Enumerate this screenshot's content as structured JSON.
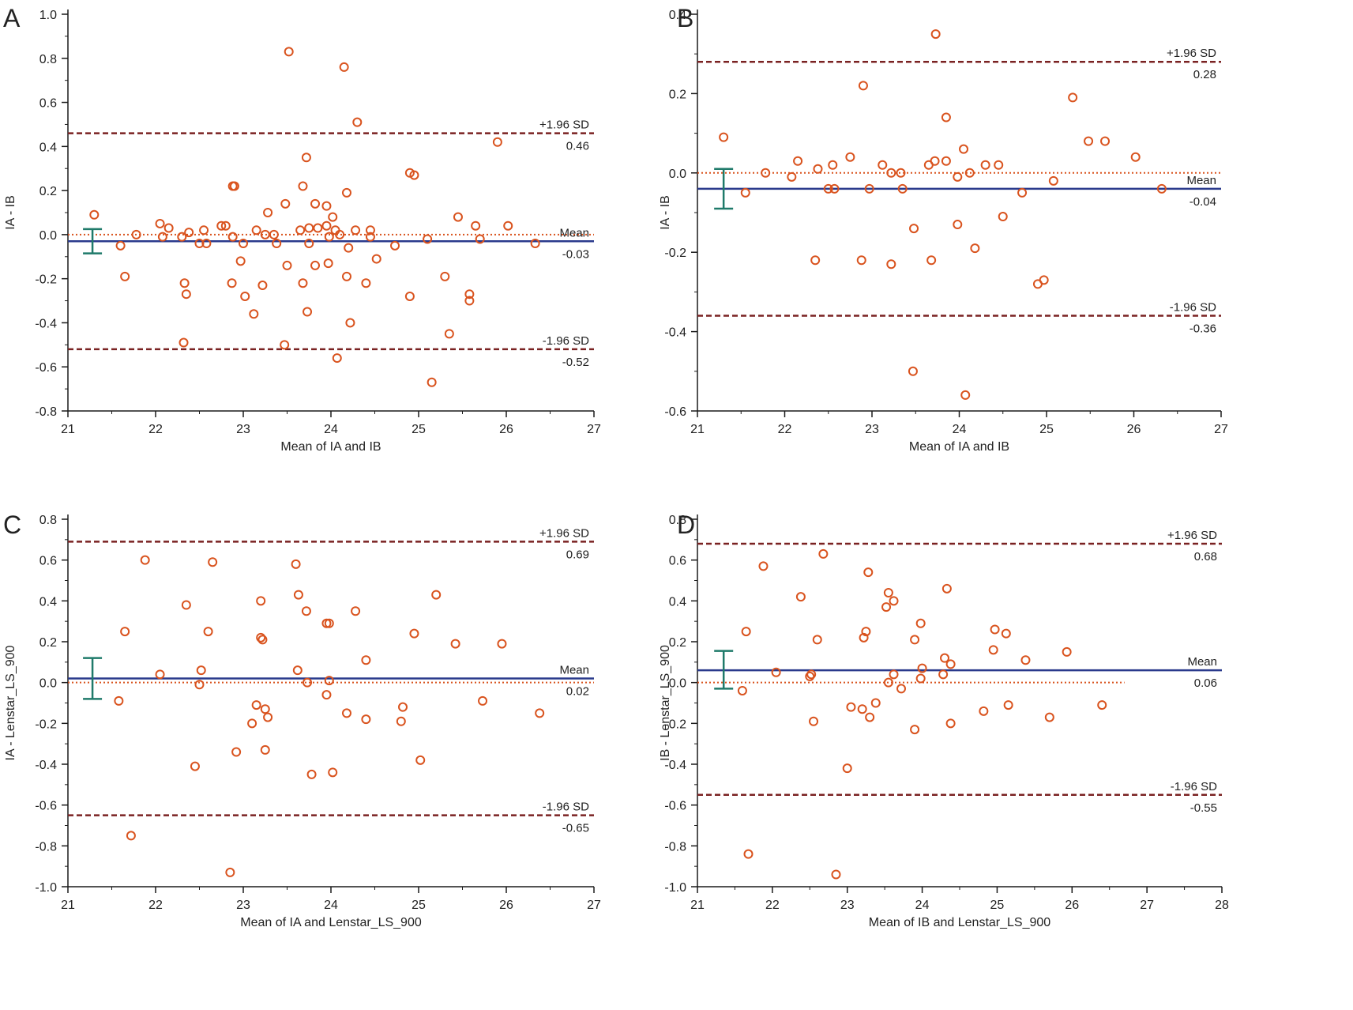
{
  "colors": {
    "axis": "#1a1a1a",
    "point": "#d9531e",
    "mean_line": "#2a3a8c",
    "sd_line": "#7a2222",
    "zero_line": "#d9531e",
    "ci_bar": "#1f7a6a"
  },
  "chart_data": [
    {
      "panel": "A",
      "type": "scatter",
      "xlabel": "Mean of IA and IB",
      "ylabel": "IA - IB",
      "xlim": [
        21,
        27
      ],
      "ylim": [
        -0.8,
        1.0
      ],
      "xticks": [
        "21",
        "22",
        "23",
        "24",
        "25",
        "26",
        "27"
      ],
      "yticks": [
        "-0.8",
        "-0.6",
        "-0.4",
        "-0.2",
        "0.0",
        "0.2",
        "0.4",
        "0.6",
        "0.8",
        "1.0"
      ],
      "lines": {
        "upper": {
          "value": 0.46,
          "label": "+1.96 SD",
          "value_label": "0.46"
        },
        "mean": {
          "value": -0.03,
          "label": "Mean",
          "value_label": "-0.03"
        },
        "lower": {
          "value": -0.52,
          "label": "-1.96 SD",
          "value_label": "-0.52"
        }
      },
      "mean_ci": {
        "x": 21.28,
        "low": -0.085,
        "high": 0.025
      },
      "points": [
        [
          21.3,
          0.09
        ],
        [
          21.6,
          -0.05
        ],
        [
          21.65,
          -0.19
        ],
        [
          21.78,
          0.0
        ],
        [
          22.05,
          0.05
        ],
        [
          22.08,
          -0.01
        ],
        [
          22.15,
          0.03
        ],
        [
          22.3,
          -0.01
        ],
        [
          22.33,
          -0.22
        ],
        [
          22.35,
          -0.27
        ],
        [
          22.32,
          -0.49
        ],
        [
          22.38,
          0.01
        ],
        [
          22.5,
          -0.04
        ],
        [
          22.55,
          0.02
        ],
        [
          22.58,
          -0.04
        ],
        [
          22.75,
          0.04
        ],
        [
          22.8,
          0.04
        ],
        [
          22.88,
          -0.01
        ],
        [
          22.88,
          0.22
        ],
        [
          22.9,
          0.22
        ],
        [
          22.87,
          -0.22
        ],
        [
          22.97,
          -0.12
        ],
        [
          23.0,
          -0.04
        ],
        [
          23.02,
          -0.28
        ],
        [
          23.15,
          0.02
        ],
        [
          23.12,
          -0.36
        ],
        [
          23.25,
          0.0
        ],
        [
          23.22,
          -0.23
        ],
        [
          23.28,
          0.1
        ],
        [
          23.38,
          -0.04
        ],
        [
          23.35,
          0.0
        ],
        [
          23.48,
          0.14
        ],
        [
          23.47,
          -0.5
        ],
        [
          23.5,
          -0.14
        ],
        [
          23.52,
          0.83
        ],
        [
          23.65,
          0.02
        ],
        [
          23.68,
          0.22
        ],
        [
          23.68,
          -0.22
        ],
        [
          23.72,
          0.35
        ],
        [
          23.75,
          0.03
        ],
        [
          23.75,
          -0.04
        ],
        [
          23.73,
          -0.35
        ],
        [
          23.82,
          0.14
        ],
        [
          23.85,
          0.03
        ],
        [
          23.82,
          -0.14
        ],
        [
          23.95,
          0.13
        ],
        [
          23.95,
          0.04
        ],
        [
          23.98,
          -0.01
        ],
        [
          23.97,
          -0.13
        ],
        [
          24.02,
          0.08
        ],
        [
          24.05,
          0.02
        ],
        [
          24.07,
          -0.56
        ],
        [
          24.1,
          0.0
        ],
        [
          24.15,
          0.76
        ],
        [
          24.18,
          0.19
        ],
        [
          24.2,
          -0.06
        ],
        [
          24.18,
          -0.19
        ],
        [
          24.22,
          -0.4
        ],
        [
          24.28,
          0.02
        ],
        [
          24.3,
          0.51
        ],
        [
          24.4,
          -0.22
        ],
        [
          24.45,
          0.02
        ],
        [
          24.45,
          -0.01
        ],
        [
          24.52,
          -0.11
        ],
        [
          24.73,
          -0.05
        ],
        [
          24.9,
          0.28
        ],
        [
          24.95,
          0.27
        ],
        [
          24.9,
          -0.28
        ],
        [
          25.1,
          -0.02
        ],
        [
          25.15,
          -0.67
        ],
        [
          25.3,
          -0.19
        ],
        [
          25.35,
          -0.45
        ],
        [
          25.45,
          0.08
        ],
        [
          25.58,
          -0.27
        ],
        [
          25.58,
          -0.3
        ],
        [
          25.65,
          0.04
        ],
        [
          25.7,
          -0.02
        ],
        [
          25.9,
          0.42
        ],
        [
          26.02,
          0.04
        ],
        [
          26.33,
          -0.04
        ]
      ]
    },
    {
      "panel": "B",
      "type": "scatter",
      "xlabel": "Mean of IA and IB",
      "ylabel": "IA - IB",
      "xlim": [
        21,
        27
      ],
      "ylim": [
        -0.6,
        0.4
      ],
      "xticks": [
        "21",
        "22",
        "23",
        "24",
        "25",
        "26",
        "27"
      ],
      "yticks": [
        "-0.6",
        "-0.4",
        "-0.2",
        "0.0",
        "0.2",
        "0.4"
      ],
      "lines": {
        "upper": {
          "value": 0.28,
          "label": "+1.96 SD",
          "value_label": "0.28"
        },
        "mean": {
          "value": -0.04,
          "label": "Mean",
          "value_label": "-0.04"
        },
        "lower": {
          "value": -0.36,
          "label": "-1.96 SD",
          "value_label": "-0.36"
        }
      },
      "mean_ci": {
        "x": 21.3,
        "low": -0.09,
        "high": 0.01
      },
      "points": [
        [
          21.3,
          0.09
        ],
        [
          21.55,
          -0.05
        ],
        [
          21.78,
          0.0
        ],
        [
          22.08,
          -0.01
        ],
        [
          22.15,
          0.03
        ],
        [
          22.35,
          -0.22
        ],
        [
          22.38,
          0.01
        ],
        [
          22.5,
          -0.04
        ],
        [
          22.55,
          0.02
        ],
        [
          22.57,
          -0.04
        ],
        [
          22.75,
          0.04
        ],
        [
          22.88,
          -0.22
        ],
        [
          22.9,
          0.22
        ],
        [
          22.97,
          -0.04
        ],
        [
          23.12,
          0.02
        ],
        [
          23.22,
          0.0
        ],
        [
          23.22,
          -0.23
        ],
        [
          23.33,
          0.0
        ],
        [
          23.35,
          -0.04
        ],
        [
          23.48,
          -0.14
        ],
        [
          23.47,
          -0.5
        ],
        [
          23.65,
          0.02
        ],
        [
          23.68,
          -0.22
        ],
        [
          23.72,
          0.03
        ],
        [
          23.73,
          0.35
        ],
        [
          23.85,
          0.03
        ],
        [
          23.85,
          0.14
        ],
        [
          23.98,
          -0.01
        ],
        [
          23.98,
          -0.13
        ],
        [
          24.05,
          0.06
        ],
        [
          24.07,
          -0.56
        ],
        [
          24.12,
          0.0
        ],
        [
          24.18,
          -0.19
        ],
        [
          24.3,
          0.02
        ],
        [
          24.45,
          0.02
        ],
        [
          24.5,
          -0.11
        ],
        [
          24.72,
          -0.05
        ],
        [
          24.9,
          -0.28
        ],
        [
          24.97,
          -0.27
        ],
        [
          25.08,
          -0.02
        ],
        [
          25.3,
          0.19
        ],
        [
          25.48,
          0.08
        ],
        [
          25.67,
          0.08
        ],
        [
          26.02,
          0.04
        ],
        [
          26.32,
          -0.04
        ]
      ]
    },
    {
      "panel": "C",
      "type": "scatter",
      "xlabel": "Mean of IA and Lenstar_LS_900",
      "ylabel": "IA - Lenstar_LS_900",
      "xlim": [
        21,
        27
      ],
      "ylim": [
        -1.0,
        0.8
      ],
      "xticks": [
        "21",
        "22",
        "23",
        "24",
        "25",
        "26",
        "27"
      ],
      "yticks": [
        "-1.0",
        "-0.8",
        "-0.6",
        "-0.4",
        "-0.2",
        "0.0",
        "0.2",
        "0.4",
        "0.6",
        "0.8"
      ],
      "lines": {
        "upper": {
          "value": 0.69,
          "label": "+1.96 SD",
          "value_label": "0.69"
        },
        "mean": {
          "value": 0.02,
          "label": "Mean",
          "value_label": "0.02"
        },
        "lower": {
          "value": -0.65,
          "label": "-1.96 SD",
          "value_label": "-0.65"
        }
      },
      "mean_ci": {
        "x": 21.28,
        "low": -0.08,
        "high": 0.12
      },
      "points": [
        [
          21.58,
          -0.09
        ],
        [
          21.65,
          0.25
        ],
        [
          21.72,
          -0.75
        ],
        [
          21.88,
          0.6
        ],
        [
          22.05,
          0.04
        ],
        [
          22.35,
          0.38
        ],
        [
          22.45,
          -0.41
        ],
        [
          22.5,
          -0.01
        ],
        [
          22.52,
          0.06
        ],
        [
          22.6,
          0.25
        ],
        [
          22.65,
          0.59
        ],
        [
          22.85,
          -0.93
        ],
        [
          22.92,
          -0.34
        ],
        [
          23.1,
          -0.2
        ],
        [
          23.15,
          -0.11
        ],
        [
          23.2,
          0.4
        ],
        [
          23.2,
          0.22
        ],
        [
          23.22,
          0.21
        ],
        [
          23.25,
          -0.33
        ],
        [
          23.25,
          -0.13
        ],
        [
          23.28,
          -0.17
        ],
        [
          23.6,
          0.58
        ],
        [
          23.62,
          0.06
        ],
        [
          23.63,
          0.43
        ],
        [
          23.72,
          0.35
        ],
        [
          23.73,
          0.0
        ],
        [
          23.78,
          -0.45
        ],
        [
          23.95,
          0.29
        ],
        [
          23.95,
          -0.06
        ],
        [
          23.98,
          0.01
        ],
        [
          23.98,
          0.29
        ],
        [
          24.02,
          -0.44
        ],
        [
          24.18,
          -0.15
        ],
        [
          24.28,
          0.35
        ],
        [
          24.4,
          0.11
        ],
        [
          24.4,
          -0.18
        ],
        [
          24.8,
          -0.19
        ],
        [
          24.82,
          -0.12
        ],
        [
          24.95,
          0.24
        ],
        [
          25.02,
          -0.38
        ],
        [
          25.2,
          0.43
        ],
        [
          25.42,
          0.19
        ],
        [
          25.73,
          -0.09
        ],
        [
          25.95,
          0.19
        ],
        [
          26.38,
          -0.15
        ]
      ]
    },
    {
      "panel": "D",
      "type": "scatter",
      "xlabel": "Mean of IB and Lenstar_LS_900",
      "ylabel": "IB - Lenstar_LS_900",
      "xlim": [
        21,
        28
      ],
      "ylim": [
        -1.0,
        0.8
      ],
      "xticks": [
        "21",
        "22",
        "23",
        "24",
        "25",
        "26",
        "27",
        "28"
      ],
      "yticks": [
        "-1.0",
        "-0.8",
        "-0.6",
        "-0.4",
        "-0.2",
        "0.0",
        "0.2",
        "0.4",
        "0.6",
        "0.8"
      ],
      "lines": {
        "upper": {
          "value": 0.68,
          "label": "+1.96 SD",
          "value_label": "0.68"
        },
        "mean": {
          "value": 0.06,
          "label": "Mean",
          "value_label": "0.06"
        },
        "lower": {
          "value": -0.55,
          "label": "-1.96 SD",
          "value_label": "-0.55"
        }
      },
      "mean_ci": {
        "x": 21.35,
        "low": -0.03,
        "high": 0.155
      },
      "points": [
        [
          21.6,
          -0.04
        ],
        [
          21.65,
          0.25
        ],
        [
          21.68,
          -0.84
        ],
        [
          21.88,
          0.57
        ],
        [
          22.05,
          0.05
        ],
        [
          22.38,
          0.42
        ],
        [
          22.5,
          0.03
        ],
        [
          22.52,
          0.04
        ],
        [
          22.55,
          -0.19
        ],
        [
          22.6,
          0.21
        ],
        [
          22.68,
          0.63
        ],
        [
          22.85,
          -0.94
        ],
        [
          23.0,
          -0.42
        ],
        [
          23.05,
          -0.12
        ],
        [
          23.2,
          -0.13
        ],
        [
          23.22,
          0.22
        ],
        [
          23.25,
          0.25
        ],
        [
          23.28,
          0.54
        ],
        [
          23.3,
          -0.17
        ],
        [
          23.38,
          -0.1
        ],
        [
          23.52,
          0.37
        ],
        [
          23.55,
          0.44
        ],
        [
          23.55,
          0.0
        ],
        [
          23.62,
          0.4
        ],
        [
          23.62,
          0.04
        ],
        [
          23.72,
          -0.03
        ],
        [
          23.9,
          -0.23
        ],
        [
          23.9,
          0.21
        ],
        [
          23.98,
          0.29
        ],
        [
          23.98,
          0.02
        ],
        [
          24.0,
          0.07
        ],
        [
          24.28,
          0.04
        ],
        [
          24.3,
          0.12
        ],
        [
          24.33,
          0.46
        ],
        [
          24.38,
          -0.2
        ],
        [
          24.38,
          0.09
        ],
        [
          24.82,
          -0.14
        ],
        [
          24.95,
          0.16
        ],
        [
          24.97,
          0.26
        ],
        [
          25.12,
          0.24
        ],
        [
          25.15,
          -0.11
        ],
        [
          25.38,
          0.11
        ],
        [
          25.7,
          -0.17
        ],
        [
          25.93,
          0.15
        ],
        [
          26.4,
          -0.11
        ]
      ]
    }
  ],
  "panel_labels": [
    "A",
    "B",
    "C",
    "D"
  ]
}
